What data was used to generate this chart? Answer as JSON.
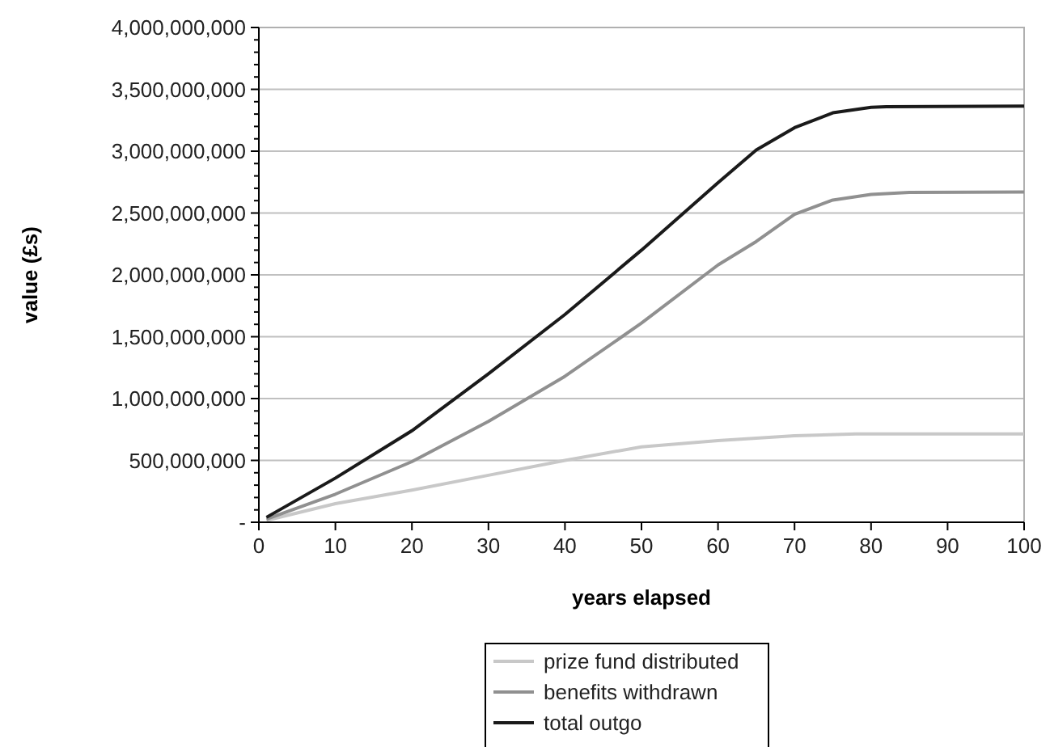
{
  "chart_data": {
    "type": "line",
    "xlabel": "years elapsed",
    "ylabel": "value (£s)",
    "xlim": [
      0,
      100
    ],
    "xticks": [
      0,
      10,
      20,
      30,
      40,
      50,
      60,
      70,
      80,
      90,
      100
    ],
    "ylim": [
      0,
      4000000000
    ],
    "yticks": [
      {
        "value": 0,
        "label": "-"
      },
      {
        "value": 100000000,
        "label": null
      },
      {
        "value": 200000000,
        "label": null
      },
      {
        "value": 300000000,
        "label": null
      },
      {
        "value": 400000000,
        "label": null
      },
      {
        "value": 500000000,
        "label": "500,000,000"
      },
      {
        "value": 600000000,
        "label": null
      },
      {
        "value": 700000000,
        "label": null
      },
      {
        "value": 800000000,
        "label": null
      },
      {
        "value": 900000000,
        "label": null
      },
      {
        "value": 1000000000,
        "label": "1,000,000,000"
      },
      {
        "value": 1100000000,
        "label": null
      },
      {
        "value": 1200000000,
        "label": null
      },
      {
        "value": 1300000000,
        "label": null
      },
      {
        "value": 1400000000,
        "label": null
      },
      {
        "value": 1500000000,
        "label": "1,500,000,000"
      },
      {
        "value": 1600000000,
        "label": null
      },
      {
        "value": 1700000000,
        "label": null
      },
      {
        "value": 1800000000,
        "label": null
      },
      {
        "value": 1900000000,
        "label": null
      },
      {
        "value": 2000000000,
        "label": "2,000,000,000"
      },
      {
        "value": 2100000000,
        "label": null
      },
      {
        "value": 2200000000,
        "label": null
      },
      {
        "value": 2300000000,
        "label": null
      },
      {
        "value": 2400000000,
        "label": null
      },
      {
        "value": 2500000000,
        "label": "2,500,000,000"
      },
      {
        "value": 2600000000,
        "label": null
      },
      {
        "value": 2700000000,
        "label": null
      },
      {
        "value": 2800000000,
        "label": null
      },
      {
        "value": 2900000000,
        "label": null
      },
      {
        "value": 3000000000,
        "label": "3,000,000,000"
      },
      {
        "value": 3100000000,
        "label": null
      },
      {
        "value": 3200000000,
        "label": null
      },
      {
        "value": 3300000000,
        "label": null
      },
      {
        "value": 3400000000,
        "label": null
      },
      {
        "value": 3500000000,
        "label": "3,500,000,000"
      },
      {
        "value": 3600000000,
        "label": null
      },
      {
        "value": 3700000000,
        "label": null
      },
      {
        "value": 3800000000,
        "label": null
      },
      {
        "value": 3900000000,
        "label": null
      },
      {
        "value": 4000000000,
        "label": "4,000,000,000"
      }
    ],
    "grid": "y",
    "legend": "bottom",
    "marker": "none",
    "line_style": "solid",
    "series": [
      {
        "name": "prize fund distributed",
        "color": "#c8c8c8",
        "x": [
          1,
          10,
          20,
          30,
          40,
          50,
          60,
          70,
          78,
          100
        ],
        "values": [
          15000000,
          150000000,
          260000000,
          380000000,
          500000000,
          610000000,
          660000000,
          700000000,
          714000000,
          714000000
        ]
      },
      {
        "name": "benefits withdrawn",
        "color": "#909090",
        "x": [
          1,
          10,
          20,
          30,
          40,
          50,
          60,
          65,
          70,
          75,
          80,
          85,
          100
        ],
        "values": [
          25000000,
          227000000,
          490000000,
          815000000,
          1180000000,
          1610000000,
          2080000000,
          2270000000,
          2490000000,
          2605000000,
          2650000000,
          2667000000,
          2670000000
        ]
      },
      {
        "name": "total outgo",
        "color": "#1a1a1a",
        "x": [
          1,
          10,
          20,
          30,
          40,
          50,
          60,
          65,
          70,
          75,
          80,
          82,
          100
        ],
        "values": [
          40000000,
          357000000,
          740000000,
          1200000000,
          1680000000,
          2200000000,
          2745000000,
          3010000000,
          3190000000,
          3310000000,
          3355000000,
          3360000000,
          3365000000
        ]
      }
    ]
  }
}
